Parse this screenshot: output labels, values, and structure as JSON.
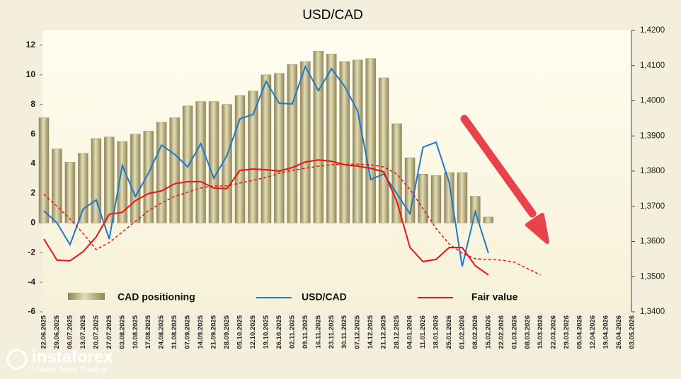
{
  "chart_data": {
    "type": "bar_line",
    "title": "USD/CAD",
    "categories": [
      "22.06.2025",
      "29.06.2025",
      "06.07.2025",
      "13.07.2025",
      "20.07.2025",
      "27.07.2025",
      "03.08.2025",
      "10.08.2025",
      "17.08.2025",
      "24.08.2025",
      "31.08.2025",
      "07.09.2025",
      "14.09.2025",
      "21.09.2025",
      "28.09.2025",
      "05.10.2025",
      "12.10.2025",
      "19.10.2025",
      "26.10.2025",
      "02.11.2025",
      "09.11.2025",
      "16.11.2025",
      "23.11.2025",
      "30.11.2025",
      "07.12.2025",
      "14.12.2025",
      "21.12.2025",
      "28.12.2025",
      "04.01.2026",
      "11.01.2026",
      "18.01.2026",
      "25.01.2026",
      "01.02.2026",
      "08.02.2026",
      "15.02.2026",
      "22.02.2026",
      "01.03.2026",
      "08.03.2026",
      "15.03.2026",
      "22.03.2026",
      "29.03.2026",
      "05.04.2026",
      "12.04.2026",
      "19.04.2026",
      "26.04.2026",
      "03.05.2026"
    ],
    "series": [
      {
        "name": "CAD positioning",
        "type": "bar",
        "color": "#b5ab7c",
        "values": [
          7.1,
          5.0,
          4.1,
          4.7,
          5.7,
          5.8,
          5.5,
          6.0,
          6.2,
          6.8,
          7.1,
          7.9,
          8.2,
          8.2,
          8.0,
          8.6,
          8.9,
          10.0,
          10.1,
          10.7,
          10.9,
          11.6,
          11.4,
          10.9,
          11.0,
          11.1,
          9.8,
          6.7,
          4.4,
          3.3,
          3.2,
          3.4,
          3.4,
          1.8,
          0.4,
          null,
          null,
          null,
          null,
          null,
          null,
          null,
          null,
          null,
          null,
          null
        ]
      },
      {
        "name": "USD/CAD",
        "type": "line",
        "axis": "y2",
        "color": "#1f78c8",
        "values": [
          1.3687,
          1.3653,
          1.3591,
          1.3692,
          1.3718,
          1.3607,
          1.3816,
          1.3728,
          1.3794,
          1.3874,
          1.3848,
          1.3812,
          1.3878,
          1.378,
          1.3844,
          1.3949,
          1.3961,
          1.4055,
          1.3993,
          1.3991,
          1.4097,
          1.4029,
          1.4091,
          1.4041,
          1.3971,
          1.3776,
          1.3792,
          1.3736,
          1.3679,
          1.3868,
          1.3882,
          1.3768,
          1.3529,
          1.3685,
          1.3567,
          null,
          null,
          null,
          null,
          null,
          null,
          null,
          null,
          null,
          null,
          null
        ]
      },
      {
        "name": "Fair value",
        "type": "line",
        "axis": "y2",
        "color": "#ee1111",
        "values": [
          1.3607,
          1.3547,
          1.3545,
          1.3571,
          1.3613,
          1.3677,
          1.3683,
          1.3716,
          1.3736,
          1.3744,
          1.3764,
          1.377,
          1.377,
          1.3752,
          1.375,
          1.3802,
          1.3806,
          1.3804,
          1.38,
          1.381,
          1.3826,
          1.3832,
          1.3828,
          1.3818,
          1.3814,
          1.3808,
          1.3798,
          1.3714,
          1.3583,
          1.3543,
          1.3549,
          1.3583,
          1.3583,
          1.3531,
          1.3505,
          null,
          null,
          null,
          null,
          null,
          null,
          null,
          null,
          null,
          null,
          null
        ]
      },
      {
        "type": "line",
        "axis": "y2",
        "color": "#ee1111",
        "dashed": true,
        "values": [
          1.3734,
          1.37,
          1.3664,
          1.3623,
          1.3577,
          1.3597,
          1.3627,
          1.3657,
          1.3687,
          1.371,
          1.3728,
          1.374,
          1.3752,
          1.3758,
          1.3758,
          1.3766,
          1.3774,
          1.3782,
          1.3794,
          1.3802,
          1.3808,
          1.3814,
          1.3818,
          1.382,
          1.382,
          1.3818,
          1.3812,
          1.3792,
          1.3748,
          1.3693,
          1.3637,
          1.3593,
          1.3567,
          1.3551,
          1.3549,
          1.3547,
          1.3541,
          1.3523,
          1.3505,
          null,
          null,
          null,
          null,
          null,
          null,
          null
        ]
      }
    ],
    "ylim": [
      -6,
      13
    ],
    "yticks": [
      -6,
      -4,
      -2,
      0,
      2,
      4,
      6,
      8,
      10,
      12
    ],
    "y2lim": [
      1.34,
      1.42
    ],
    "y2ticks": [
      {
        "value": 1.34,
        "label": "1,3400"
      },
      {
        "value": 1.35,
        "label": "1,3500"
      },
      {
        "value": 1.36,
        "label": "1,3600"
      },
      {
        "value": 1.37,
        "label": "1,3700"
      },
      {
        "value": 1.38,
        "label": "1,3800"
      },
      {
        "value": 1.39,
        "label": "1,3900"
      },
      {
        "value": 1.4,
        "label": "1,4000"
      },
      {
        "value": 1.41,
        "label": "1,4100"
      },
      {
        "value": 1.42,
        "label": "1,4200"
      }
    ]
  },
  "watermark": {
    "brand": "instaforex",
    "tagline": "Instant Forex Trading"
  }
}
